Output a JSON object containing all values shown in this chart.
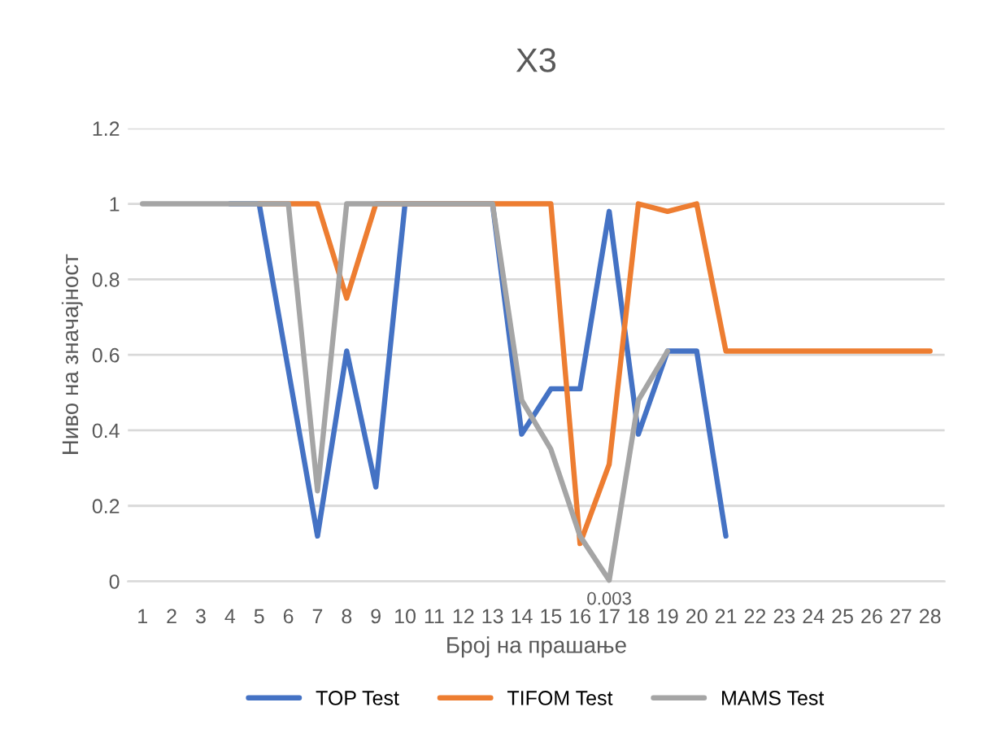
{
  "chart_data": {
    "type": "line",
    "title": "X3",
    "xlabel": "Број на прашање",
    "ylabel": "Ниво на значајност",
    "categories": [
      "1",
      "2",
      "3",
      "4",
      "5",
      "6",
      "7",
      "8",
      "9",
      "10",
      "11",
      "12",
      "13",
      "14",
      "15",
      "16",
      "17",
      "18",
      "19",
      "20",
      "21",
      "22",
      "23",
      "24",
      "25",
      "26",
      "27",
      "28"
    ],
    "series": [
      {
        "name": "TOP Test",
        "color": "#4472c4",
        "values": [
          null,
          null,
          null,
          1,
          1,
          0.56,
          0.12,
          0.61,
          0.25,
          1,
          1,
          1,
          1,
          0.39,
          0.51,
          0.51,
          0.98,
          0.39,
          0.61,
          0.61,
          0.12,
          null,
          null,
          null,
          null,
          null,
          null,
          null
        ]
      },
      {
        "name": "TIFOM Test",
        "color": "#ed7d31",
        "values": [
          null,
          null,
          null,
          null,
          1,
          1,
          1,
          0.75,
          1,
          1,
          1,
          1,
          1,
          1,
          1,
          0.1,
          0.31,
          1,
          0.98,
          1,
          0.61,
          0.61,
          0.61,
          0.61,
          0.61,
          0.61,
          0.61,
          0.61
        ]
      },
      {
        "name": "MAMS Test",
        "color": "#a5a5a5",
        "values": [
          1,
          1,
          1,
          1,
          1,
          1,
          0.24,
          1,
          1,
          1,
          1,
          1,
          1,
          0.48,
          0.35,
          0.12,
          0.003,
          0.48,
          0.61,
          null,
          null,
          null,
          null,
          null,
          null,
          null,
          null,
          null
        ],
        "value_labels": [
          null,
          null,
          null,
          null,
          null,
          null,
          null,
          null,
          null,
          null,
          null,
          null,
          null,
          null,
          null,
          null,
          "0.003",
          null,
          null,
          null,
          null,
          null,
          null,
          null,
          null,
          null,
          null,
          null
        ]
      }
    ],
    "ylim": [
      0,
      1.2
    ],
    "yticks": [
      0,
      0.2,
      0.4,
      0.6,
      0.8,
      1,
      1.2
    ],
    "grid": "y",
    "legend": "bottom",
    "line_style": "solid",
    "marker": "none"
  }
}
